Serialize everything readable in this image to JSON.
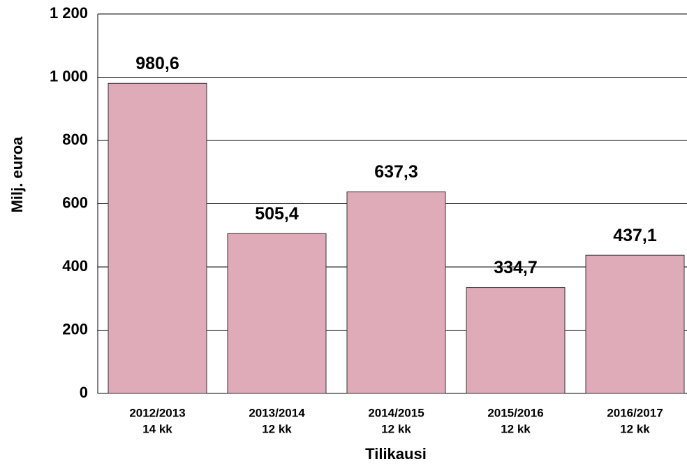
{
  "chart_data": {
    "type": "bar",
    "categories": [
      [
        "2012/2013",
        "14 kk"
      ],
      [
        "2013/2014",
        "12 kk"
      ],
      [
        "2014/2015",
        "12 kk"
      ],
      [
        "2015/2016",
        "12 kk"
      ],
      [
        "2016/2017",
        "12 kk"
      ]
    ],
    "values": [
      980.6,
      505.4,
      637.3,
      334.7,
      437.1
    ],
    "value_labels": [
      "980,6",
      "505,4",
      "637,3",
      "334,7",
      "437,1"
    ],
    "color": "#e0abb8",
    "ylabel": "Milj. euroa",
    "xlabel": "Tilikausi",
    "ylim": [
      0,
      1200
    ],
    "yticks": [
      0,
      200,
      400,
      600,
      800,
      {
        "value": 1000,
        "label": "1 000"
      },
      {
        "value": 1200,
        "label": "1 200"
      }
    ],
    "grid": true
  }
}
